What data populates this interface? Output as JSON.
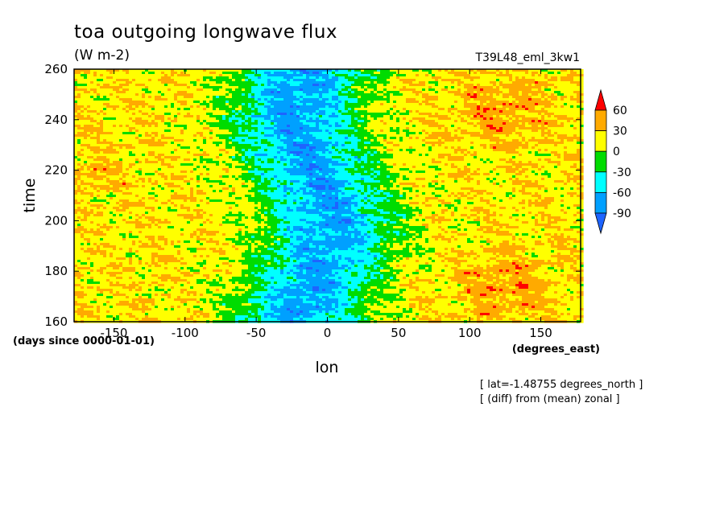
{
  "chart_data": {
    "type": "heatmap",
    "title": "toa outgoing longwave flux",
    "units": "(W m-2)",
    "run_label": "T39L48_eml_3kw1",
    "xlabel": "lon",
    "ylabel": "time",
    "x_units": "(degrees_east)",
    "y_units": "(days since 0000-01-01)",
    "xlim": [
      -178,
      178
    ],
    "ylim": [
      160,
      260
    ],
    "x_ticks": [
      -150,
      -100,
      -50,
      0,
      50,
      100,
      150
    ],
    "x_tick_labels": [
      "-150",
      "-100",
      "-50",
      "0",
      "50",
      "100",
      "150"
    ],
    "y_ticks": [
      160,
      180,
      200,
      220,
      240,
      260
    ],
    "y_tick_labels": [
      "160",
      "180",
      "200",
      "220",
      "240",
      "260"
    ],
    "notes": [
      "[ lat=-1.48755 degrees_north ]",
      "[ (diff) from (mean) zonal ]"
    ],
    "colorbar": {
      "levels": [
        -90,
        -60,
        -30,
        0,
        30,
        60
      ],
      "labels": [
        "-90",
        "-60",
        "-30",
        "0",
        "30",
        "60"
      ],
      "colors": [
        "#1e64ff",
        "#00a0ff",
        "#00ffff",
        "#00dc00",
        "#ffff00",
        "#ffaa00",
        "#ff0000"
      ],
      "extend": "both"
    },
    "grid": false,
    "legend": "right"
  }
}
